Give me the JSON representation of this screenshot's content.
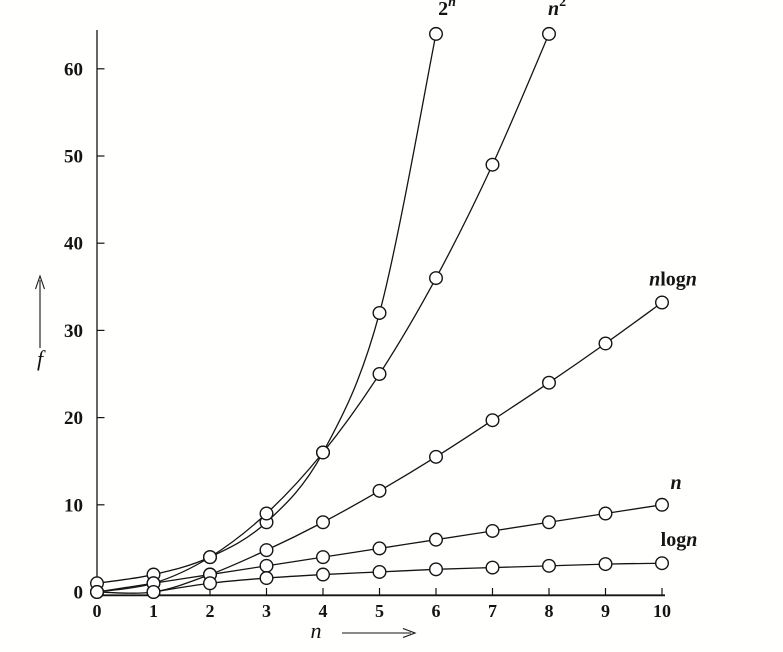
{
  "chart_data": {
    "type": "line",
    "title": "",
    "xlabel": "n",
    "ylabel": "f",
    "xlim": [
      0,
      10
    ],
    "ylim": [
      0,
      65
    ],
    "x_ticks": [
      0,
      1,
      2,
      3,
      4,
      5,
      6,
      7,
      8,
      9,
      10
    ],
    "y_ticks": [
      0,
      10,
      20,
      30,
      40,
      50,
      60
    ],
    "grid": false,
    "legend_position": "inline-curve-labels",
    "marker": "open-circle",
    "line_color": "#141414",
    "background_color": "#ffffff",
    "series": [
      {
        "name": "2^n",
        "x": [
          0,
          1,
          2,
          3,
          4,
          5,
          6
        ],
        "y": [
          1,
          2,
          4,
          8,
          16,
          32,
          64
        ]
      },
      {
        "name": "n^2",
        "x": [
          0,
          1,
          2,
          3,
          4,
          5,
          6,
          7,
          8
        ],
        "y": [
          0,
          1,
          4,
          9,
          16,
          25,
          36,
          49,
          64
        ]
      },
      {
        "name": "n log n",
        "x": [
          0,
          1,
          2,
          3,
          4,
          5,
          6,
          7,
          8,
          9,
          10
        ],
        "y": [
          0,
          0,
          2,
          4.8,
          8,
          11.6,
          15.5,
          19.7,
          24,
          28.5,
          33.2
        ]
      },
      {
        "name": "n",
        "x": [
          0,
          1,
          2,
          3,
          4,
          5,
          6,
          7,
          8,
          9,
          10
        ],
        "y": [
          0,
          1,
          2,
          3,
          4,
          5,
          6,
          7,
          8,
          9,
          10
        ]
      },
      {
        "name": "log n",
        "x": [
          1,
          2,
          3,
          4,
          5,
          6,
          7,
          8,
          9,
          10
        ],
        "y": [
          0,
          1,
          1.6,
          2,
          2.3,
          2.6,
          2.8,
          3,
          3.2,
          3.3
        ]
      }
    ]
  }
}
